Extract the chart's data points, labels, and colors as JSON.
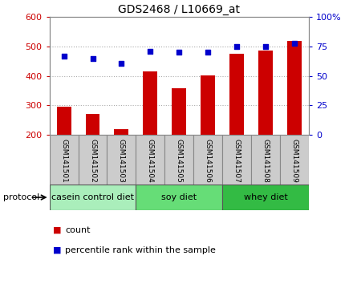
{
  "title": "GDS2468 / L10669_at",
  "samples": [
    "GSM141501",
    "GSM141502",
    "GSM141503",
    "GSM141504",
    "GSM141505",
    "GSM141506",
    "GSM141507",
    "GSM141508",
    "GSM141509"
  ],
  "counts": [
    295,
    272,
    220,
    415,
    358,
    403,
    476,
    487,
    519
  ],
  "percentile_ranks": [
    67,
    65,
    61,
    71,
    70,
    70,
    75,
    75,
    78
  ],
  "groups": [
    {
      "label": "casein control diet",
      "start": 0,
      "end": 3,
      "color": "#aaeebb"
    },
    {
      "label": "soy diet",
      "start": 3,
      "end": 6,
      "color": "#66dd77"
    },
    {
      "label": "whey diet",
      "start": 6,
      "end": 9,
      "color": "#33bb44"
    }
  ],
  "bar_color": "#cc0000",
  "dot_color": "#0000cc",
  "ylim_left": [
    200,
    600
  ],
  "ylim_right": [
    0,
    100
  ],
  "yticks_left": [
    200,
    300,
    400,
    500,
    600
  ],
  "yticks_right": [
    0,
    25,
    50,
    75,
    100
  ],
  "ytick_labels_right": [
    "0",
    "25",
    "50",
    "75",
    "100%"
  ],
  "grid_yticks": [
    300,
    400,
    500
  ],
  "grid_color": "#aaaaaa",
  "axis_label_color_left": "#cc0000",
  "axis_label_color_right": "#0000cc",
  "bar_width": 0.5,
  "protocol_label": "protocol",
  "label_box_color": "#cccccc",
  "label_box_edge": "#888888",
  "title_fontsize": 10,
  "tick_fontsize": 8,
  "sample_fontsize": 6.5,
  "proto_fontsize": 8,
  "legend_fontsize": 8
}
